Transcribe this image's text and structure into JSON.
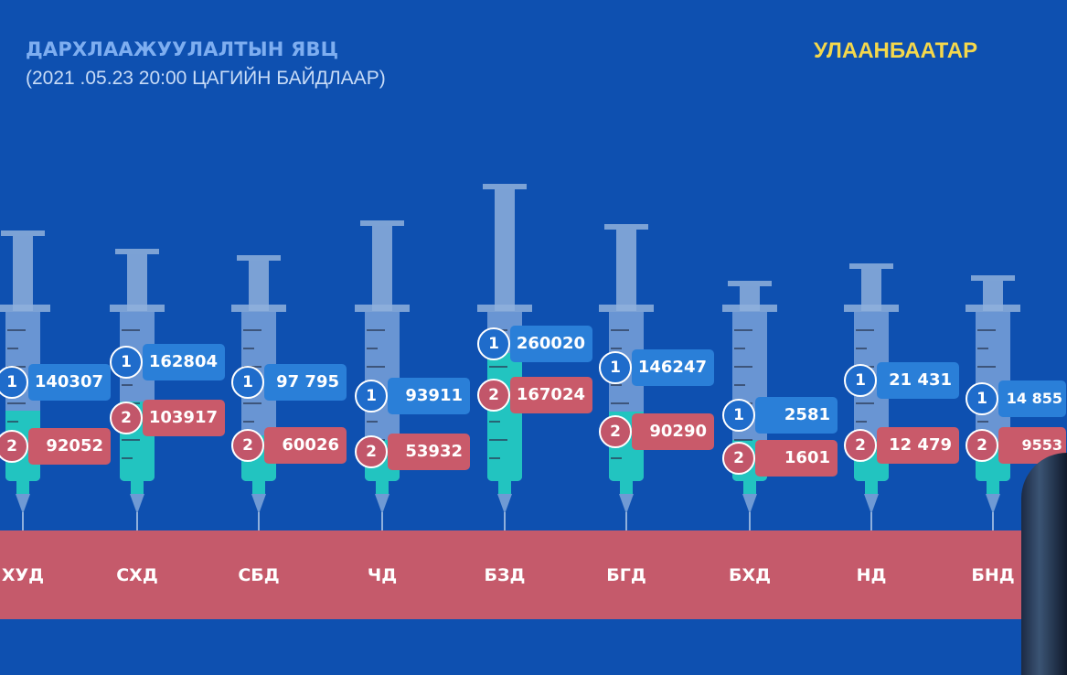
{
  "header": {
    "title": "ДАРХЛААЖУУЛАЛТЫН ЯВЦ",
    "subtitle": "(2021 .05.23    20:00 ЦАГИЙН БАЙДЛААР)",
    "city": "УЛААНБААТАР"
  },
  "colors": {
    "background": "#0e50b0",
    "dose1": "#2a7fd8",
    "dose2": "#c95a6a",
    "fill": "#22c4c0",
    "band": "#c55a6b",
    "city": "#f4d84c"
  },
  "chart_data": {
    "type": "bar",
    "title": "ДАРХЛААЖУУЛАЛТЫН ЯВЦ",
    "categories": [
      "ХУД",
      "СХД",
      "СБД",
      "ЧД",
      "БЗД",
      "БГД",
      "БХД",
      "НД",
      "БНД"
    ],
    "dose_markers": [
      "1",
      "2"
    ],
    "series": [
      {
        "name": "1",
        "values": [
          140307,
          162804,
          97795,
          93911,
          260020,
          146247,
          2581,
          21431,
          14855
        ],
        "labels": [
          "140307",
          "162804",
          "97 795",
          "93911",
          "260020",
          "146247",
          "2581",
          "21 431",
          "14 855"
        ]
      },
      {
        "name": "2",
        "values": [
          92052,
          103917,
          60026,
          53932,
          167024,
          90290,
          1601,
          12479,
          9553
        ],
        "labels": [
          "92052",
          "103917",
          "60026",
          "53932",
          "167024",
          "90290",
          "1601",
          "12 479",
          "9553"
        ]
      }
    ]
  }
}
